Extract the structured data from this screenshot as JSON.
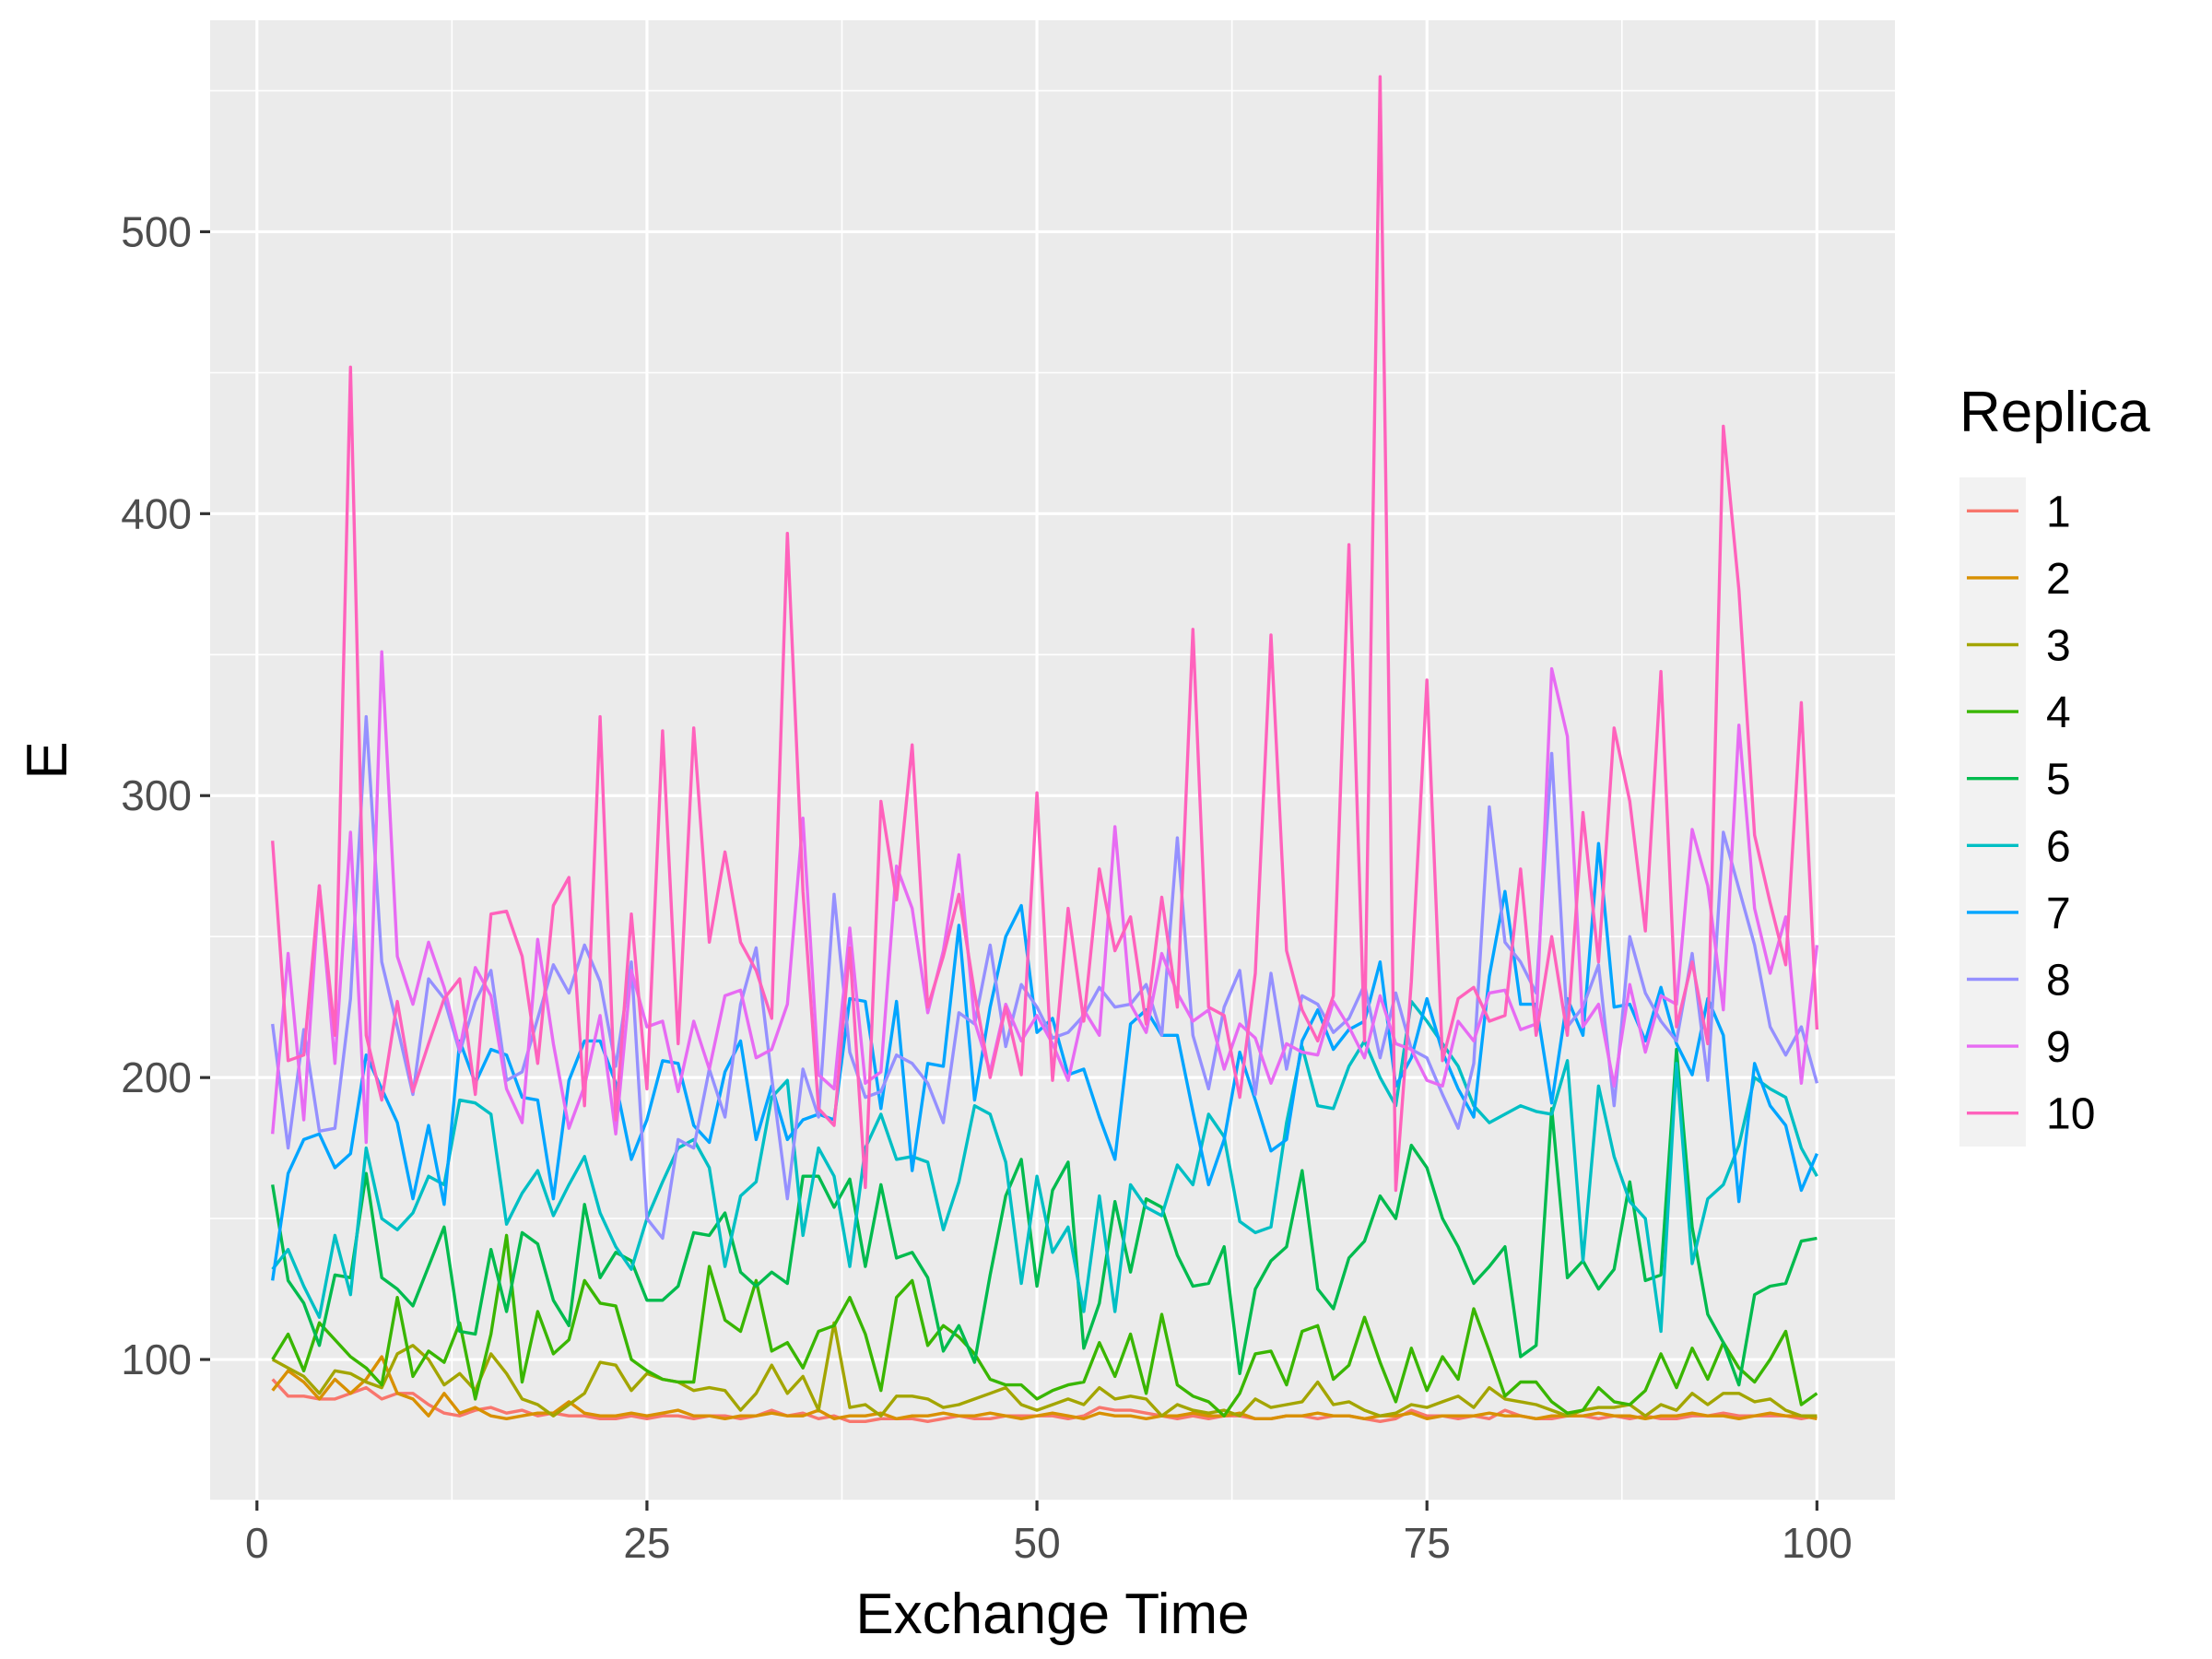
{
  "chart_data": {
    "type": "line",
    "xlabel": "Exchange Time",
    "ylabel": "E",
    "xlim": [
      -3,
      105
    ],
    "ylim": [
      50,
      575
    ],
    "x_ticks": [
      0,
      25,
      50,
      75,
      100
    ],
    "y_ticks": [
      100,
      200,
      300,
      400,
      500
    ],
    "x_tick_labels": [
      "0",
      "25",
      "50",
      "75",
      "100"
    ],
    "y_tick_labels": [
      "100",
      "200",
      "300",
      "400",
      "500"
    ],
    "grid": true,
    "legend": {
      "title": "Replica",
      "placement": "right"
    },
    "x_start": 1,
    "x_step": 1,
    "series": [
      {
        "name": "1",
        "color": "#F8766D",
        "values": [
          93,
          87,
          87,
          86,
          86,
          88,
          90,
          86,
          88,
          88,
          84,
          81,
          80,
          82,
          83,
          81,
          82,
          80,
          81,
          80,
          80,
          79,
          79,
          80,
          79,
          80,
          80,
          79,
          80,
          80,
          79,
          80,
          82,
          80,
          81,
          79,
          80,
          78,
          78,
          79,
          79,
          79,
          78,
          79,
          80,
          79,
          79,
          80,
          80,
          80,
          80,
          79,
          80,
          83,
          82,
          82,
          81,
          80,
          79,
          80,
          79,
          80,
          80,
          79,
          79,
          80,
          80,
          79,
          80,
          80,
          79,
          78,
          79,
          82,
          80,
          80,
          79,
          80,
          79,
          82,
          80,
          79,
          79,
          80,
          80,
          79,
          80,
          79,
          80,
          79,
          79,
          80,
          80,
          81,
          80,
          80,
          80,
          80,
          79,
          80
        ]
      },
      {
        "name": "2",
        "color": "#D89000",
        "values": [
          89,
          96,
          92,
          86,
          93,
          88,
          93,
          101,
          88,
          86,
          80,
          88,
          81,
          83,
          80,
          79,
          80,
          81,
          81,
          85,
          81,
          80,
          80,
          81,
          80,
          81,
          82,
          80,
          80,
          79,
          80,
          80,
          81,
          80,
          80,
          82,
          79,
          80,
          80,
          81,
          79,
          80,
          80,
          81,
          80,
          80,
          81,
          80,
          79,
          80,
          81,
          80,
          79,
          81,
          80,
          80,
          79,
          80,
          80,
          81,
          80,
          80,
          81,
          79,
          79,
          80,
          80,
          81,
          80,
          80,
          79,
          80,
          80,
          81,
          79,
          80,
          80,
          80,
          81,
          80,
          80,
          79,
          80,
          80,
          80,
          81,
          80,
          80,
          79,
          80,
          80,
          81,
          80,
          80,
          79,
          80,
          81,
          80,
          80,
          79
        ]
      },
      {
        "name": "3",
        "color": "#A3A500",
        "values": [
          100,
          97,
          94,
          88,
          96,
          95,
          92,
          90,
          102,
          105,
          100,
          91,
          95,
          89,
          102,
          95,
          86,
          84,
          80,
          84,
          88,
          99,
          98,
          89,
          95,
          93,
          92,
          89,
          90,
          89,
          82,
          88,
          98,
          88,
          94,
          82,
          113,
          83,
          84,
          80,
          87,
          87,
          86,
          83,
          84,
          86,
          88,
          90,
          84,
          82,
          84,
          86,
          84,
          90,
          86,
          87,
          86,
          80,
          84,
          82,
          81,
          82,
          80,
          86,
          83,
          84,
          85,
          92,
          84,
          85,
          82,
          80,
          81,
          84,
          83,
          85,
          87,
          83,
          90,
          86,
          85,
          84,
          82,
          80,
          82,
          83,
          83,
          84,
          80,
          84,
          82,
          88,
          84,
          88,
          88,
          85,
          86,
          82,
          80,
          80
        ]
      },
      {
        "name": "4",
        "color": "#39B600",
        "values": [
          100,
          109,
          96,
          113,
          107,
          101,
          97,
          91,
          122,
          94,
          103,
          99,
          113,
          86,
          109,
          144,
          92,
          117,
          102,
          107,
          128,
          120,
          119,
          100,
          96,
          93,
          92,
          92,
          133,
          114,
          110,
          128,
          103,
          106,
          97,
          110,
          112,
          122,
          109,
          89,
          122,
          128,
          105,
          112,
          108,
          102,
          93,
          91,
          91,
          86,
          89,
          91,
          92,
          106,
          94,
          109,
          88,
          116,
          91,
          87,
          85,
          80,
          88,
          102,
          103,
          91,
          110,
          112,
          93,
          98,
          115,
          99,
          85,
          104,
          89,
          101,
          93,
          118,
          103,
          87,
          92,
          92,
          85,
          81,
          82,
          90,
          85,
          84,
          89,
          102,
          90,
          104,
          93,
          106,
          97,
          92,
          100,
          110,
          84,
          88
        ]
      },
      {
        "name": "5",
        "color": "#00BB4E",
        "values": [
          162,
          128,
          120,
          105,
          130,
          129,
          166,
          129,
          125,
          119,
          133,
          147,
          110,
          109,
          139,
          117,
          145,
          141,
          121,
          112,
          155,
          129,
          138,
          135,
          121,
          121,
          126,
          145,
          144,
          152,
          131,
          126,
          131,
          127,
          165,
          165,
          154,
          164,
          133,
          162,
          136,
          138,
          129,
          103,
          112,
          99,
          130,
          158,
          171,
          126,
          160,
          170,
          104,
          120,
          156,
          131,
          157,
          154,
          137,
          126,
          127,
          140,
          95,
          125,
          135,
          140,
          167,
          125,
          118,
          136,
          142,
          158,
          150,
          176,
          168,
          150,
          140,
          127,
          133,
          140,
          101,
          105,
          189,
          129,
          135,
          125,
          132,
          163,
          128,
          130,
          210,
          147,
          116,
          106,
          91,
          123,
          126,
          127,
          142,
          143
        ]
      },
      {
        "name": "6",
        "color": "#00BFC4",
        "values": [
          132,
          139,
          126,
          115,
          144,
          123,
          175,
          150,
          146,
          152,
          165,
          162,
          192,
          191,
          187,
          148,
          159,
          167,
          151,
          162,
          172,
          152,
          140,
          132,
          150,
          163,
          175,
          178,
          168,
          133,
          158,
          163,
          193,
          199,
          144,
          175,
          165,
          133,
          175,
          187,
          171,
          172,
          170,
          146,
          163,
          190,
          187,
          170,
          127,
          165,
          138,
          147,
          117,
          158,
          117,
          162,
          154,
          151,
          169,
          162,
          187,
          179,
          149,
          145,
          147,
          184,
          211,
          190,
          189,
          204,
          213,
          200,
          190,
          227,
          220,
          212,
          204,
          190,
          184,
          187,
          190,
          188,
          187,
          206,
          135,
          197,
          172,
          156,
          150,
          110,
          205,
          134,
          157,
          162,
          176,
          200,
          196,
          193,
          175,
          165
        ]
      },
      {
        "name": "7",
        "color": "#00A5FF",
        "values": [
          128,
          166,
          178,
          180,
          168,
          173,
          208,
          196,
          184,
          157,
          183,
          155,
          213,
          198,
          210,
          208,
          193,
          192,
          157,
          199,
          213,
          213,
          198,
          171,
          185,
          206,
          205,
          183,
          177,
          202,
          213,
          178,
          197,
          178,
          185,
          187,
          185,
          228,
          227,
          189,
          227,
          167,
          205,
          204,
          254,
          192,
          225,
          250,
          261,
          216,
          221,
          201,
          203,
          186,
          171,
          219,
          224,
          215,
          215,
          188,
          162,
          178,
          209,
          192,
          174,
          178,
          213,
          224,
          210,
          217,
          220,
          241,
          197,
          207,
          228,
          209,
          196,
          186,
          236,
          266,
          226,
          226,
          191,
          228,
          215,
          283,
          225,
          226,
          213,
          232,
          212,
          201,
          228,
          215,
          156,
          205,
          190,
          183,
          160,
          173
        ]
      },
      {
        "name": "8",
        "color": "#9590FF",
        "values": [
          219,
          175,
          217,
          181,
          182,
          228,
          328,
          241,
          218,
          194,
          235,
          228,
          209,
          227,
          238,
          199,
          202,
          221,
          240,
          230,
          247,
          234,
          204,
          241,
          150,
          143,
          178,
          175,
          203,
          186,
          226,
          246,
          200,
          157,
          203,
          186,
          265,
          209,
          193,
          195,
          208,
          205,
          198,
          184,
          223,
          219,
          247,
          211,
          233,
          225,
          214,
          216,
          222,
          232,
          225,
          226,
          233,
          215,
          285,
          215,
          196,
          225,
          238,
          194,
          237,
          203,
          229,
          226,
          216,
          221,
          233,
          207,
          230,
          210,
          207,
          194,
          182,
          205,
          296,
          248,
          241,
          230,
          315,
          218,
          225,
          240,
          190,
          250,
          230,
          220,
          213,
          244,
          199,
          287,
          267,
          247,
          218,
          208,
          218,
          198
        ]
      },
      {
        "name": "9",
        "color": "#E76BF3",
        "values": [
          180,
          244,
          185,
          268,
          205,
          287,
          177,
          351,
          243,
          226,
          248,
          232,
          210,
          239,
          229,
          196,
          184,
          249,
          212,
          182,
          197,
          222,
          180,
          238,
          218,
          220,
          195,
          220,
          203,
          229,
          231,
          207,
          210,
          226,
          292,
          201,
          196,
          253,
          198,
          202,
          275,
          260,
          223,
          245,
          279,
          220,
          202,
          226,
          213,
          222,
          212,
          199,
          224,
          215,
          289,
          226,
          216,
          244,
          230,
          220,
          224,
          203,
          219,
          214,
          198,
          212,
          209,
          208,
          227,
          218,
          207,
          229,
          212,
          210,
          199,
          197,
          220,
          213,
          230,
          231,
          217,
          219,
          345,
          321,
          218,
          226,
          197,
          233,
          209,
          229,
          226,
          288,
          268,
          224,
          325,
          260,
          237,
          257,
          198,
          247
        ]
      },
      {
        "name": "10",
        "color": "#FF62BC",
        "values": [
          284,
          206,
          208,
          268,
          215,
          452,
          215,
          192,
          227,
          195,
          212,
          228,
          235,
          194,
          258,
          259,
          243,
          205,
          261,
          271,
          190,
          328,
          185,
          258,
          196,
          323,
          212,
          324,
          248,
          280,
          248,
          238,
          221,
          393,
          266,
          189,
          183,
          246,
          161,
          298,
          263,
          318,
          225,
          243,
          265,
          230,
          200,
          225,
          201,
          301,
          199,
          260,
          220,
          274,
          245,
          257,
          219,
          264,
          225,
          359,
          225,
          222,
          193,
          237,
          357,
          245,
          224,
          213,
          229,
          389,
          213,
          555,
          160,
          234,
          341,
          206,
          228,
          232,
          220,
          222,
          274,
          215,
          250,
          215,
          294,
          241,
          324,
          298,
          252,
          344,
          218,
          241,
          212,
          431,
          373,
          286,
          262,
          240,
          333,
          217
        ]
      }
    ]
  }
}
